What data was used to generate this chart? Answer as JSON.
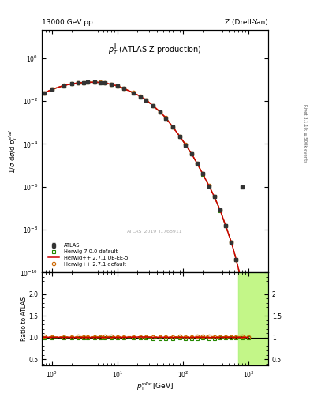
{
  "title_left": "13000 GeV pp",
  "title_right": "Z (Drell-Yan)",
  "plot_label": "$p_{T}^{\\|}$ (ATLAS Z production)",
  "watermark": "ATLAS_2019_I1768911",
  "right_label_1": "Rivet 3.1.10;",
  "right_label_2": "≥ 500k events",
  "xlabel": "$p_{T}^{\\rm ellar}$[GeV]",
  "ylabel_main": "1/σ dσ/d p$_{T}^{\\rm ellal}$",
  "ylabel_ratio": "Ratio to ATLAS",
  "xlim": [
    0.7,
    2000
  ],
  "ylim_main": [
    1e-10,
    20
  ],
  "ylim_ratio": [
    0.35,
    2.5
  ],
  "atlas_x": [
    0.75,
    1.0,
    1.5,
    2.0,
    2.5,
    3.0,
    3.5,
    4.5,
    5.5,
    6.5,
    8.0,
    10.0,
    12.5,
    17.5,
    22.5,
    27.5,
    35.0,
    45.0,
    55.0,
    70.0,
    90.0,
    110.0,
    135.0,
    165.0,
    200.0,
    250.0,
    300.0,
    370.0,
    450.0,
    550.0,
    650.0,
    800.0,
    1000.0
  ],
  "atlas_y": [
    0.023,
    0.035,
    0.052,
    0.063,
    0.069,
    0.072,
    0.074,
    0.075,
    0.073,
    0.069,
    0.06,
    0.05,
    0.038,
    0.024,
    0.016,
    0.011,
    0.006,
    0.003,
    0.0016,
    0.0006,
    0.00022,
    9e-05,
    3.5e-05,
    1.2e-05,
    4e-06,
    1.1e-06,
    3.5e-07,
    8e-08,
    1.5e-08,
    2.5e-09,
    4e-10,
    3e-11,
    2e-12
  ],
  "atlas_ye": [
    0.002,
    0.002,
    0.003,
    0.003,
    0.003,
    0.003,
    0.003,
    0.002,
    0.002,
    0.002,
    0.002,
    0.001,
    0.001,
    0.001,
    0.001,
    0.0005,
    0.0002,
    0.0001,
    5e-05,
    2e-05,
    7e-06,
    3e-06,
    1.5e-06,
    5e-07,
    1.5e-07,
    4e-08,
    1.5e-08,
    3e-09,
    6e-10,
    1.5e-10,
    2e-11,
    2e-12,
    2e-13
  ],
  "mc1_x": [
    0.75,
    1.0,
    1.5,
    2.0,
    2.5,
    3.0,
    3.5,
    4.5,
    5.5,
    6.5,
    8.0,
    10.0,
    12.5,
    17.5,
    22.5,
    27.5,
    35.0,
    45.0,
    55.0,
    70.0,
    90.0,
    110.0,
    135.0,
    165.0,
    200.0,
    250.0,
    300.0,
    370.0,
    450.0,
    550.0,
    650.0,
    800.0,
    1000.0
  ],
  "mc1_y": [
    0.0235,
    0.0355,
    0.053,
    0.064,
    0.0705,
    0.0735,
    0.0755,
    0.0765,
    0.0745,
    0.0705,
    0.0615,
    0.051,
    0.0388,
    0.0245,
    0.0163,
    0.01115,
    0.0061,
    0.00305,
    0.00163,
    0.00061,
    0.000225,
    9.15e-05,
    3.57e-05,
    1.23e-05,
    4.1e-06,
    1.13e-06,
    3.57e-07,
    8.15e-08,
    1.53e-08,
    2.55e-09,
    4.08e-10,
    3.07e-11,
    2.04e-12
  ],
  "mc2_x": [
    0.75,
    1.0,
    1.5,
    2.0,
    2.5,
    3.0,
    3.5,
    4.5,
    5.5,
    6.5,
    8.0,
    10.0,
    12.5,
    17.5,
    22.5,
    27.5,
    35.0,
    45.0,
    55.0,
    70.0,
    90.0,
    110.0,
    135.0,
    165.0,
    200.0,
    250.0,
    300.0,
    370.0,
    450.0,
    550.0,
    650.0,
    800.0,
    1000.0
  ],
  "mc2_y": [
    0.0232,
    0.0352,
    0.0522,
    0.0632,
    0.0692,
    0.0722,
    0.0742,
    0.0752,
    0.0732,
    0.0692,
    0.0602,
    0.0502,
    0.0382,
    0.0242,
    0.0162,
    0.01112,
    0.00602,
    0.00302,
    0.00161,
    0.000602,
    0.000221,
    9.02e-05,
    3.51e-05,
    1.21e-05,
    4.02e-06,
    1.102e-06,
    3.51e-07,
    8.02e-08,
    1.51e-08,
    2.51e-09,
    4.01e-10,
    3.01e-11,
    2.01e-12
  ],
  "mc3_x": [
    0.75,
    1.0,
    1.5,
    2.0,
    2.5,
    3.0,
    3.5,
    4.5,
    5.5,
    6.5,
    8.0,
    10.0,
    12.5,
    17.5,
    22.5,
    27.5,
    35.0,
    45.0,
    55.0,
    70.0,
    90.0,
    110.0,
    135.0,
    165.0,
    200.0,
    250.0,
    300.0,
    370.0,
    450.0,
    550.0,
    650.0,
    800.0,
    1000.0
  ],
  "mc3_y": [
    0.0228,
    0.0348,
    0.0518,
    0.0628,
    0.0688,
    0.0718,
    0.0738,
    0.0748,
    0.0728,
    0.0688,
    0.0598,
    0.0498,
    0.0378,
    0.0238,
    0.01585,
    0.01085,
    0.00588,
    0.00295,
    0.001575,
    0.00059,
    0.000217,
    8.85e-05,
    3.44e-05,
    1.18e-05,
    3.94e-06,
    1.08e-06,
    3.44e-07,
    7.88e-08,
    1.48e-08,
    2.47e-09,
    3.94e-10,
    2.96e-11,
    1.97e-12
  ],
  "atlas_isolated_x": 800.0,
  "atlas_isolated_y": 1e-06,
  "color_atlas": "#333333",
  "color_mc1": "#cc6600",
  "color_mc2": "#cc0000",
  "color_mc3": "#228800",
  "legend_atlas": "ATLAS",
  "legend_mc1": "Herwig++ 2.7.1 default",
  "legend_mc2": "Herwig++ 2.7.1 UE-EE-5",
  "legend_mc3": "Herwig 7.0.0 default",
  "highlight_xstart": 700,
  "highlight_color_yellow": "#ffff88",
  "highlight_color_green": "#88ee88"
}
